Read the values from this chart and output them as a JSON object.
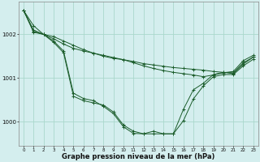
{
  "bg_color": "#d4eeee",
  "grid_color": "#aad8cc",
  "line_color": "#1a5c2a",
  "marker_color": "#1a5c2a",
  "xlabel": "Graphe pression niveau de la mer (hPa)",
  "xlabel_fontsize": 6.0,
  "ytick_labels": [
    "1000",
    "1001",
    "1002"
  ],
  "yticks": [
    1000,
    1001,
    1002
  ],
  "xlim": [
    -0.5,
    23.5
  ],
  "ylim": [
    999.45,
    1002.75
  ],
  "series": [
    [
      1002.55,
      1002.2,
      1002.0,
      1001.95,
      1001.85,
      1001.75,
      1001.65,
      1001.57,
      1001.5,
      1001.45,
      1001.42,
      1001.38,
      1001.33,
      1001.3,
      1001.27,
      1001.24,
      1001.22,
      1001.2,
      1001.18,
      1001.15,
      1001.13,
      1001.12,
      1001.35,
      1001.48
    ],
    [
      1002.55,
      1002.1,
      1002.0,
      1001.9,
      1001.78,
      1001.68,
      1001.62,
      1001.57,
      1001.52,
      1001.47,
      1001.42,
      1001.35,
      1001.28,
      1001.22,
      1001.17,
      1001.13,
      1001.1,
      1001.07,
      1001.03,
      1001.07,
      1001.12,
      1001.15,
      1001.4,
      1001.52
    ],
    [
      1002.55,
      1002.05,
      1002.0,
      1001.85,
      1001.62,
      1000.65,
      1000.53,
      1000.48,
      1000.35,
      1000.18,
      999.88,
      999.73,
      999.72,
      999.78,
      999.72,
      999.72,
      1000.28,
      1000.73,
      1000.88,
      1001.08,
      1001.13,
      1001.1,
      1001.32,
      1001.48
    ],
    [
      1002.55,
      1002.07,
      1002.0,
      1001.82,
      1001.58,
      1000.58,
      1000.48,
      1000.43,
      1000.38,
      1000.22,
      999.92,
      999.78,
      999.72,
      999.72,
      999.72,
      999.72,
      1000.02,
      1000.52,
      1000.82,
      1001.03,
      1001.08,
      1001.08,
      1001.28,
      1001.43
    ]
  ]
}
